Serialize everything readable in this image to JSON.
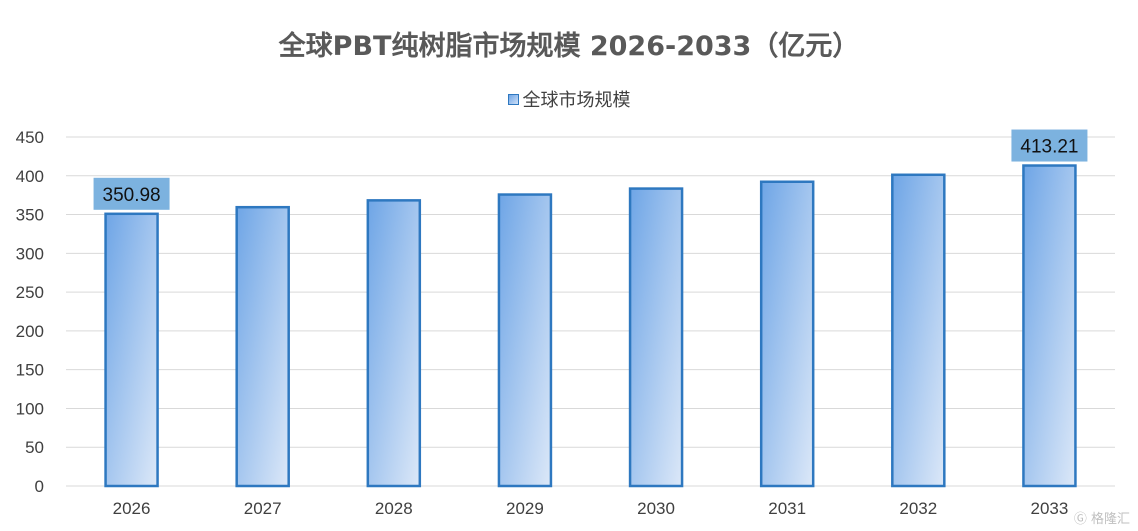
{
  "chart_data": {
    "type": "bar",
    "title": "全球PBT纯树脂市场规模 2026-2033（亿元）",
    "legend": "全球市场规模",
    "categories": [
      "2026",
      "2027",
      "2028",
      "2029",
      "2030",
      "2031",
      "2032",
      "2033"
    ],
    "series": [
      {
        "name": "全球市场规模",
        "values": [
          350.98,
          359.5,
          368.3,
          375.8,
          383.5,
          392.3,
          401.3,
          413.21
        ]
      }
    ],
    "data_labels": [
      {
        "category": "2026",
        "text": "350.98"
      },
      {
        "category": "2033",
        "text": "413.21"
      }
    ],
    "yticks": [
      "0",
      "50",
      "100",
      "150",
      "200",
      "250",
      "300",
      "350",
      "400",
      "450"
    ],
    "ylim": [
      0,
      450
    ],
    "grid": true,
    "legend_position": "top",
    "colors": {
      "bar_fill_start": "#6ea5e6",
      "bar_fill_end": "#dce8f8",
      "bar_stroke": "#2e78c0",
      "label_bg": "#7cb2df",
      "grid": "#d9d9d9",
      "text": "#404040"
    }
  },
  "watermark": "格隆汇"
}
